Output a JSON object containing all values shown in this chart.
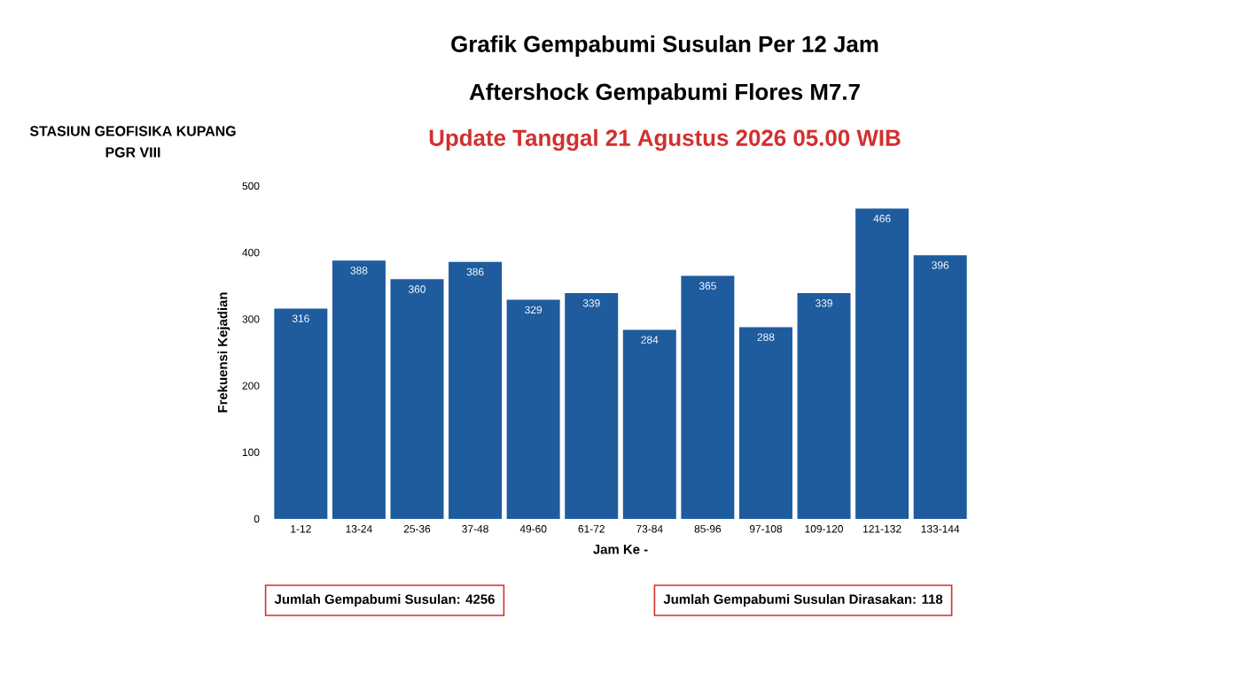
{
  "chart_data": {
    "type": "bar",
    "title": "Grafik Gempabumi Susulan Per 12 Jam",
    "subtitle": "Aftershock Gempabumi Flores M7.7",
    "annotations": [
      "Update Tanggal 21 Agustus 2026 05.00 WIB",
      "STASIUN GEOFISIKA KUPANG",
      "PGR VIII",
      "Jumlah Gempabumi Susulan: 4256",
      "Jumlah Gempabumi Susulan Dirasakan: 118"
    ],
    "xlabel": "Jam Ke -",
    "ylabel": "Frekuensi Kejadian",
    "categories": [
      "1-12",
      "13-24",
      "25-36",
      "37-48",
      "49-60",
      "61-72",
      "73-84",
      "85-96",
      "97-108",
      "109-120",
      "121-132",
      "133-144"
    ],
    "values": [
      316,
      388,
      360,
      386,
      329,
      339,
      284,
      365,
      288,
      339,
      466,
      396
    ],
    "color": "#1f5c9e",
    "ylim": [
      0,
      500
    ],
    "yticks": [
      0,
      100,
      200,
      300,
      400,
      500
    ],
    "data_labels": true
  }
}
